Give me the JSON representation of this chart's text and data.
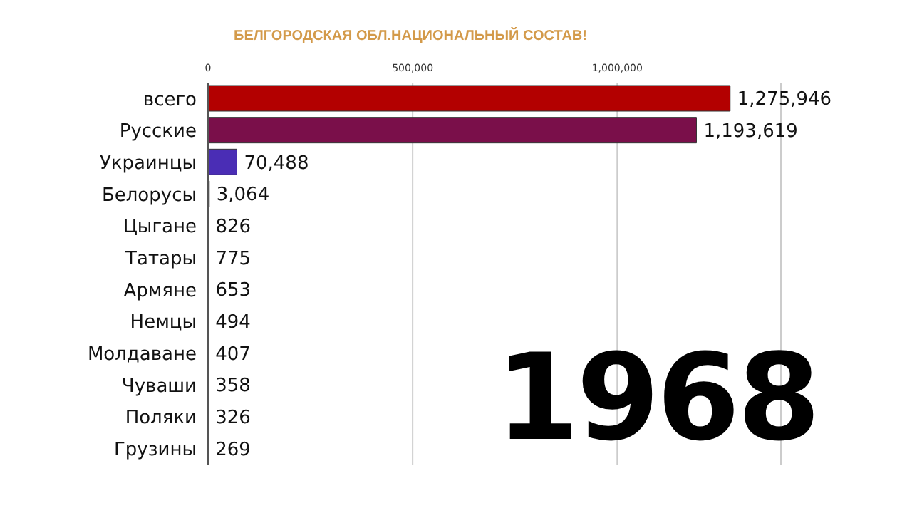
{
  "chart_data": {
    "type": "bar",
    "orientation": "horizontal",
    "title": "БЕЛГОРОДСКАЯ ОБЛ.НАЦИОНАЛЬНЫЙ СОСТАВ!",
    "categories": [
      "всего",
      "Русские",
      "Украинцы",
      "Белорусы",
      "Цыгане",
      "Татары",
      "Армяне",
      "Немцы",
      "Молдаване",
      "Чуваши",
      "Поляки",
      "Грузины"
    ],
    "values": [
      1275946,
      1193619,
      70488,
      3064,
      826,
      775,
      653,
      494,
      407,
      358,
      326,
      269
    ],
    "value_labels": [
      "1,275,946",
      "1,193,619",
      "70,488",
      "3,064",
      "826",
      "775",
      "653",
      "494",
      "407",
      "358",
      "326",
      "269"
    ],
    "colors": [
      "#b30000",
      "#7a0f4a",
      "#4a2db5",
      "#333333",
      "#333333",
      "#333333",
      "#333333",
      "#333333",
      "#333333",
      "#333333",
      "#333333",
      "#333333"
    ],
    "xlim": [
      0,
      1400000
    ],
    "xticks": [
      {
        "value": 0,
        "label": "0"
      },
      {
        "value": 500000,
        "label": "500,000"
      },
      {
        "value": 1000000,
        "label": "1,000,000"
      }
    ],
    "grid": "x",
    "annotations": [
      "1968"
    ]
  }
}
